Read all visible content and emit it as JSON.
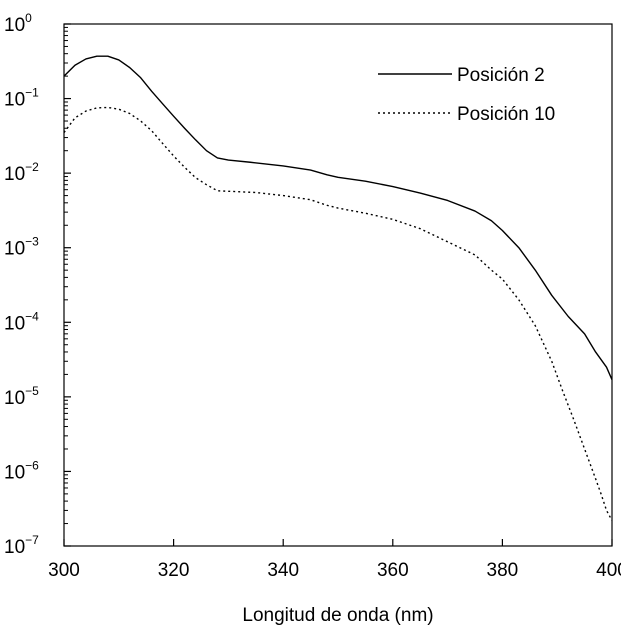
{
  "chart_data": {
    "type": "line",
    "xlabel": "Longitud de onda (nm)",
    "ylabel": "",
    "xlim": [
      300,
      400
    ],
    "ylim": [
      1e-07,
      1
    ],
    "yscale": "log",
    "grid": false,
    "legend_position": "top-right",
    "x_ticks": [
      300,
      320,
      340,
      360,
      380,
      400
    ],
    "y_ticks": [
      {
        "base": "10",
        "exp": "0",
        "value": 1
      },
      {
        "base": "10",
        "exp": "−1",
        "value": 0.1
      },
      {
        "base": "10",
        "exp": "−2",
        "value": 0.01
      },
      {
        "base": "10",
        "exp": "−3",
        "value": 0.001
      },
      {
        "base": "10",
        "exp": "−4",
        "value": 0.0001
      },
      {
        "base": "10",
        "exp": "−5",
        "value": 1e-05
      },
      {
        "base": "10",
        "exp": "−6",
        "value": 1e-06
      },
      {
        "base": "10",
        "exp": "−7",
        "value": 1e-07
      }
    ],
    "series": [
      {
        "name": "Posición 2",
        "style": "solid",
        "color": "#000000",
        "points": [
          [
            300,
            0.2
          ],
          [
            302,
            0.28
          ],
          [
            304,
            0.34
          ],
          [
            306,
            0.37
          ],
          [
            308,
            0.37
          ],
          [
            310,
            0.33
          ],
          [
            312,
            0.26
          ],
          [
            314,
            0.19
          ],
          [
            316,
            0.125
          ],
          [
            318,
            0.085
          ],
          [
            320,
            0.058
          ],
          [
            322,
            0.04
          ],
          [
            324,
            0.028
          ],
          [
            326,
            0.02
          ],
          [
            328,
            0.016
          ],
          [
            330,
            0.015
          ],
          [
            334,
            0.014
          ],
          [
            340,
            0.0125
          ],
          [
            345,
            0.011
          ],
          [
            348,
            0.0095
          ],
          [
            350,
            0.0088
          ],
          [
            355,
            0.0078
          ],
          [
            360,
            0.0066
          ],
          [
            365,
            0.0054
          ],
          [
            370,
            0.0043
          ],
          [
            375,
            0.0031
          ],
          [
            378,
            0.0023
          ],
          [
            380,
            0.0017
          ],
          [
            383,
            0.001
          ],
          [
            386,
            0.0005
          ],
          [
            389,
            0.00023
          ],
          [
            392,
            0.00012
          ],
          [
            395,
            7e-05
          ],
          [
            397,
            4e-05
          ],
          [
            399,
            2.5e-05
          ],
          [
            400,
            1.7e-05
          ]
        ]
      },
      {
        "name": "Posición 10",
        "style": "dotted",
        "color": "#000000",
        "points": [
          [
            300,
            0.035
          ],
          [
            302,
            0.055
          ],
          [
            304,
            0.068
          ],
          [
            306,
            0.075
          ],
          [
            308,
            0.076
          ],
          [
            310,
            0.072
          ],
          [
            312,
            0.063
          ],
          [
            314,
            0.05
          ],
          [
            316,
            0.037
          ],
          [
            318,
            0.025
          ],
          [
            320,
            0.017
          ],
          [
            322,
            0.012
          ],
          [
            324,
            0.0087
          ],
          [
            326,
            0.007
          ],
          [
            328,
            0.0058
          ],
          [
            335,
            0.0055
          ],
          [
            340,
            0.005
          ],
          [
            345,
            0.0044
          ],
          [
            348,
            0.0037
          ],
          [
            350,
            0.0034
          ],
          [
            355,
            0.0029
          ],
          [
            360,
            0.0024
          ],
          [
            365,
            0.0018
          ],
          [
            370,
            0.0012
          ],
          [
            375,
            0.0008
          ],
          [
            378,
            0.0005
          ],
          [
            380,
            0.00038
          ],
          [
            383,
            0.0002
          ],
          [
            386,
            9e-05
          ],
          [
            389,
            3e-05
          ],
          [
            391,
            1.2e-05
          ],
          [
            393,
            5e-06
          ],
          [
            395,
            2e-06
          ],
          [
            397,
            8e-07
          ],
          [
            398,
            5e-07
          ],
          [
            399,
            3e-07
          ],
          [
            400,
            2.2e-07
          ]
        ]
      }
    ]
  }
}
